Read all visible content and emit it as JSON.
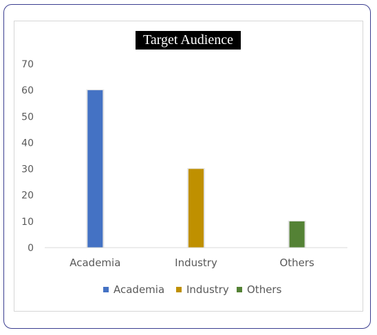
{
  "chart_data": {
    "type": "bar",
    "title": "Target Audience",
    "categories": [
      "Academia",
      "Industry",
      "Others"
    ],
    "values": [
      60,
      30,
      10
    ],
    "colors": [
      "#4472c4",
      "#bf9000",
      "#548235"
    ],
    "ylim": [
      0,
      70
    ],
    "yticks": [
      "0",
      "10",
      "20",
      "30",
      "40",
      "50",
      "60",
      "70"
    ],
    "xlabel": "",
    "ylabel": "",
    "grid": false,
    "legend": {
      "position": "bottom",
      "entries": [
        "Academia",
        "Industry",
        "Others"
      ]
    }
  }
}
